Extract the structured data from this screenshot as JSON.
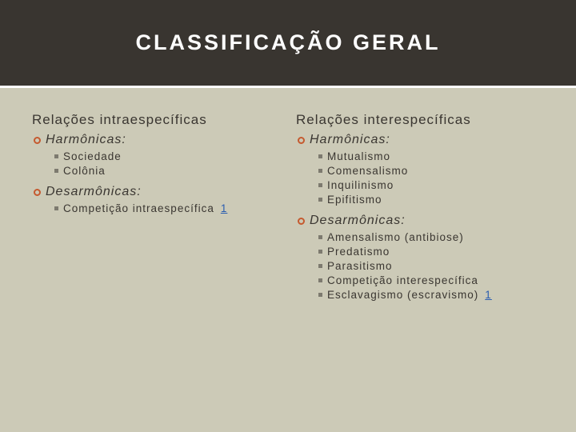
{
  "colors": {
    "header_bg": "#393530",
    "page_bg": "#cccab7",
    "title_color": "#ffffff",
    "text_color": "#3a3631",
    "hollow_bullet": "#c55a2f",
    "square_bullet": "#7d7a6f",
    "link_color": "#2a5db0"
  },
  "typography": {
    "title_size": 27,
    "col_heading_size": 17,
    "group_heading_size": 16,
    "item_size": 13.5,
    "letter_spacing": 1
  },
  "title": "CLASSIFICAÇÃO GERAL",
  "left": {
    "heading": "Relações intraespecíficas",
    "group1": {
      "label": "Harmônicas:",
      "items": [
        "Sociedade",
        "Colônia"
      ]
    },
    "group2": {
      "label": "Desarmônicas:",
      "items": [
        "Competição intraespecífica "
      ],
      "link": "1"
    }
  },
  "right": {
    "heading": "Relações interespecíficas",
    "group1": {
      "label": "Harmônicas:",
      "items": [
        "Mutualismo",
        "Comensalismo",
        "Inquilinismo",
        "Epifitismo"
      ]
    },
    "group2": {
      "label": "Desarmônicas:",
      "items": [
        "Amensalismo (antibiose)",
        "Predatismo",
        "Parasitismo",
        "Competição interespecífica",
        "Esclavagismo (escravismo)"
      ],
      "link": "1"
    }
  }
}
